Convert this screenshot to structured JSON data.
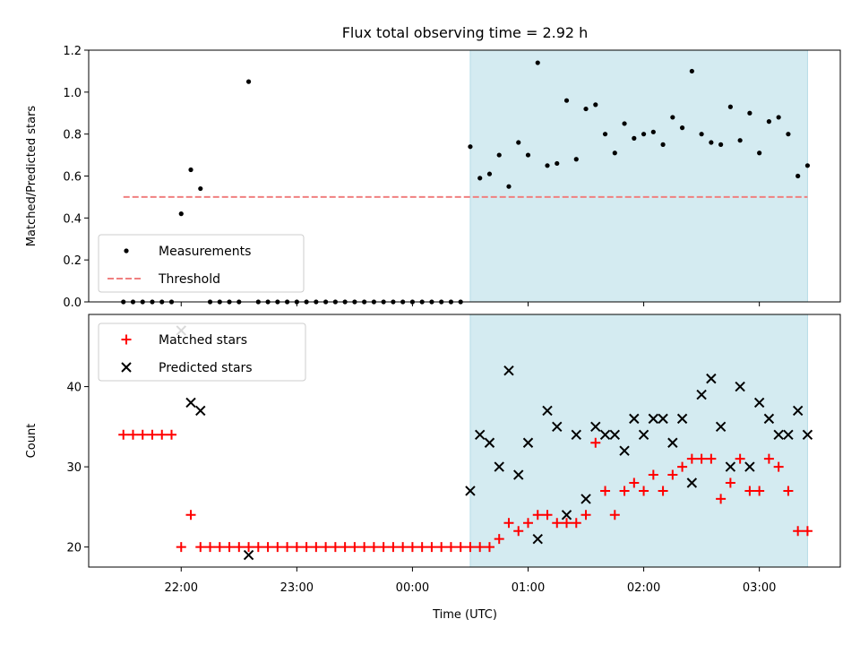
{
  "chart_data": {
    "type": "scatter",
    "title": "Flux total observing time = 2.92 h",
    "xlabel": "Time (UTC)",
    "x_ticks": [
      "22:00",
      "23:00",
      "00:00",
      "01:00",
      "02:00",
      "03:00"
    ],
    "x_range": [
      "21:12",
      "03:42"
    ],
    "shaded_interval": [
      "00:30",
      "03:25"
    ],
    "colors": {
      "shade": "#d4ebf1",
      "threshold": "#f08080",
      "matched": "#ff0000",
      "predicted": "#000000",
      "measurements": "#000000"
    },
    "panels": [
      {
        "name": "ratio",
        "ylabel": "Matched/Predicted stars",
        "ylim": [
          0,
          1.2
        ],
        "y_ticks": [
          "0.0",
          "0.2",
          "0.4",
          "0.6",
          "0.8",
          "1.0",
          "1.2"
        ],
        "legend_position": "lower-left",
        "legend": [
          "Measurements",
          "Threshold"
        ],
        "threshold": {
          "value": 0.5,
          "x_start": "21:30",
          "x_end": "03:25"
        },
        "series": [
          {
            "name": "Measurements",
            "marker": "dot",
            "points": [
              [
                "21:30",
                0
              ],
              [
                "21:35",
                0
              ],
              [
                "21:40",
                0
              ],
              [
                "21:45",
                0
              ],
              [
                "21:50",
                0
              ],
              [
                "21:55",
                0
              ],
              [
                "22:00",
                0.42
              ],
              [
                "22:05",
                0.63
              ],
              [
                "22:10",
                0.54
              ],
              [
                "22:15",
                0
              ],
              [
                "22:20",
                0
              ],
              [
                "22:25",
                0
              ],
              [
                "22:30",
                0
              ],
              [
                "22:35",
                1.05
              ],
              [
                "22:40",
                0
              ],
              [
                "22:45",
                0
              ],
              [
                "22:50",
                0
              ],
              [
                "22:55",
                0
              ],
              [
                "23:00",
                0
              ],
              [
                "23:05",
                0
              ],
              [
                "23:10",
                0
              ],
              [
                "23:15",
                0
              ],
              [
                "23:20",
                0
              ],
              [
                "23:25",
                0
              ],
              [
                "23:30",
                0
              ],
              [
                "23:35",
                0
              ],
              [
                "23:40",
                0
              ],
              [
                "23:45",
                0
              ],
              [
                "23:50",
                0
              ],
              [
                "23:55",
                0
              ],
              [
                "00:00",
                0
              ],
              [
                "00:05",
                0
              ],
              [
                "00:10",
                0
              ],
              [
                "00:15",
                0
              ],
              [
                "00:20",
                0
              ],
              [
                "00:25",
                0
              ],
              [
                "00:30",
                0.74
              ],
              [
                "00:35",
                0.59
              ],
              [
                "00:40",
                0.61
              ],
              [
                "00:45",
                0.7
              ],
              [
                "00:50",
                0.55
              ],
              [
                "00:55",
                0.76
              ],
              [
                "01:00",
                0.7
              ],
              [
                "01:05",
                1.14
              ],
              [
                "01:10",
                0.65
              ],
              [
                "01:15",
                0.66
              ],
              [
                "01:20",
                0.96
              ],
              [
                "01:25",
                0.68
              ],
              [
                "01:30",
                0.92
              ],
              [
                "01:35",
                0.94
              ],
              [
                "01:40",
                0.8
              ],
              [
                "01:45",
                0.71
              ],
              [
                "01:50",
                0.85
              ],
              [
                "01:55",
                0.78
              ],
              [
                "02:00",
                0.8
              ],
              [
                "02:05",
                0.81
              ],
              [
                "02:10",
                0.75
              ],
              [
                "02:15",
                0.88
              ],
              [
                "02:20",
                0.83
              ],
              [
                "02:25",
                1.1
              ],
              [
                "02:30",
                0.8
              ],
              [
                "02:35",
                0.76
              ],
              [
                "02:40",
                0.75
              ],
              [
                "02:45",
                0.93
              ],
              [
                "02:50",
                0.77
              ],
              [
                "02:55",
                0.9
              ],
              [
                "03:00",
                0.71
              ],
              [
                "03:05",
                0.86
              ],
              [
                "03:10",
                0.88
              ],
              [
                "03:15",
                0.8
              ],
              [
                "03:20",
                0.6
              ],
              [
                "03:25",
                0.65
              ]
            ]
          }
        ]
      },
      {
        "name": "counts",
        "ylabel": "Count",
        "ylim": [
          17.5,
          49
        ],
        "y_ticks": [
          "20",
          "30",
          "40"
        ],
        "legend_position": "upper-left",
        "legend": [
          "Matched stars",
          "Predicted stars"
        ],
        "series": [
          {
            "name": "Matched stars",
            "marker": "plus",
            "points": [
              [
                "21:30",
                34
              ],
              [
                "21:35",
                34
              ],
              [
                "21:40",
                34
              ],
              [
                "21:45",
                34
              ],
              [
                "21:50",
                34
              ],
              [
                "21:55",
                34
              ],
              [
                "22:00",
                20
              ],
              [
                "22:05",
                24
              ],
              [
                "22:10",
                20
              ],
              [
                "22:15",
                20
              ],
              [
                "22:20",
                20
              ],
              [
                "22:25",
                20
              ],
              [
                "22:30",
                20
              ],
              [
                "22:35",
                20
              ],
              [
                "22:40",
                20
              ],
              [
                "22:45",
                20
              ],
              [
                "22:50",
                20
              ],
              [
                "22:55",
                20
              ],
              [
                "23:00",
                20
              ],
              [
                "23:05",
                20
              ],
              [
                "23:10",
                20
              ],
              [
                "23:15",
                20
              ],
              [
                "23:20",
                20
              ],
              [
                "23:25",
                20
              ],
              [
                "23:30",
                20
              ],
              [
                "23:35",
                20
              ],
              [
                "23:40",
                20
              ],
              [
                "23:45",
                20
              ],
              [
                "23:50",
                20
              ],
              [
                "23:55",
                20
              ],
              [
                "00:00",
                20
              ],
              [
                "00:05",
                20
              ],
              [
                "00:10",
                20
              ],
              [
                "00:15",
                20
              ],
              [
                "00:20",
                20
              ],
              [
                "00:25",
                20
              ],
              [
                "00:30",
                20
              ],
              [
                "00:35",
                20
              ],
              [
                "00:40",
                20
              ],
              [
                "00:45",
                21
              ],
              [
                "00:50",
                23
              ],
              [
                "00:55",
                22
              ],
              [
                "01:00",
                23
              ],
              [
                "01:05",
                24
              ],
              [
                "01:10",
                24
              ],
              [
                "01:15",
                23
              ],
              [
                "01:20",
                23
              ],
              [
                "01:25",
                23
              ],
              [
                "01:30",
                24
              ],
              [
                "01:35",
                33
              ],
              [
                "01:40",
                27
              ],
              [
                "01:45",
                24
              ],
              [
                "01:50",
                27
              ],
              [
                "01:55",
                28
              ],
              [
                "02:00",
                27
              ],
              [
                "02:05",
                29
              ],
              [
                "02:10",
                27
              ],
              [
                "02:15",
                29
              ],
              [
                "02:20",
                30
              ],
              [
                "02:25",
                31
              ],
              [
                "02:30",
                31
              ],
              [
                "02:35",
                31
              ],
              [
                "02:40",
                26
              ],
              [
                "02:45",
                28
              ],
              [
                "02:50",
                31
              ],
              [
                "02:55",
                27
              ],
              [
                "03:00",
                27
              ],
              [
                "03:05",
                31
              ],
              [
                "03:10",
                30
              ],
              [
                "03:15",
                27
              ],
              [
                "03:20",
                22
              ],
              [
                "03:25",
                22
              ]
            ]
          },
          {
            "name": "Predicted stars",
            "marker": "x",
            "points": [
              [
                "22:00",
                47
              ],
              [
                "22:05",
                38
              ],
              [
                "22:10",
                37
              ],
              [
                "22:35",
                19
              ],
              [
                "00:30",
                27
              ],
              [
                "00:35",
                34
              ],
              [
                "00:40",
                33
              ],
              [
                "00:45",
                30
              ],
              [
                "00:50",
                42
              ],
              [
                "00:55",
                29
              ],
              [
                "01:00",
                33
              ],
              [
                "01:05",
                21
              ],
              [
                "01:10",
                37
              ],
              [
                "01:15",
                35
              ],
              [
                "01:20",
                24
              ],
              [
                "01:25",
                34
              ],
              [
                "01:30",
                26
              ],
              [
                "01:35",
                35
              ],
              [
                "01:40",
                34
              ],
              [
                "01:45",
                34
              ],
              [
                "01:50",
                32
              ],
              [
                "01:55",
                36
              ],
              [
                "02:00",
                34
              ],
              [
                "02:05",
                36
              ],
              [
                "02:10",
                36
              ],
              [
                "02:15",
                33
              ],
              [
                "02:20",
                36
              ],
              [
                "02:25",
                28
              ],
              [
                "02:30",
                39
              ],
              [
                "02:35",
                41
              ],
              [
                "02:40",
                35
              ],
              [
                "02:45",
                30
              ],
              [
                "02:50",
                40
              ],
              [
                "02:55",
                30
              ],
              [
                "03:00",
                38
              ],
              [
                "03:05",
                36
              ],
              [
                "03:10",
                34
              ],
              [
                "03:15",
                34
              ],
              [
                "03:20",
                37
              ],
              [
                "03:25",
                34
              ]
            ]
          }
        ]
      }
    ]
  }
}
